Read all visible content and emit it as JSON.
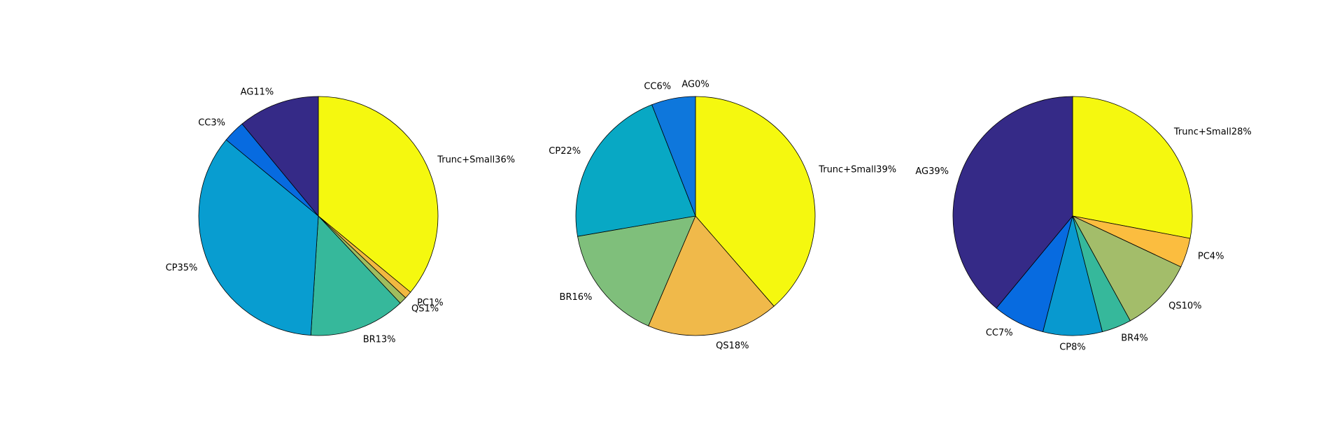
{
  "chart_data": [
    {
      "type": "pie",
      "slices": [
        {
          "name": "Trunc+Small",
          "label": "Trunc+Small36%",
          "value": 36,
          "color": "#f5f80f"
        },
        {
          "name": "PC",
          "label": "PC1%",
          "value": 1,
          "color": "#f2b840"
        },
        {
          "name": "QS",
          "label": "QS1%",
          "value": 1,
          "color": "#9fbd5e"
        },
        {
          "name": "BR",
          "label": "BR13%",
          "value": 13,
          "color": "#36b89b"
        },
        {
          "name": "CP",
          "label": "CP35%",
          "value": 35,
          "color": "#089dd0"
        },
        {
          "name": "CC",
          "label": "CC3%",
          "value": 3,
          "color": "#076be0"
        },
        {
          "name": "AG",
          "label": "AG11%",
          "value": 11,
          "color": "#352a87"
        }
      ]
    },
    {
      "type": "pie",
      "slices": [
        {
          "name": "Trunc+Small",
          "label": "Trunc+Small39%",
          "value": 39,
          "color": "#f5f80f"
        },
        {
          "name": "QS",
          "label": "QS18%",
          "value": 18,
          "color": "#f0b94a"
        },
        {
          "name": "BR",
          "label": "BR16%",
          "value": 16,
          "color": "#7fbf7b"
        },
        {
          "name": "CP",
          "label": "CP22%",
          "value": 22,
          "color": "#08a8c4"
        },
        {
          "name": "CC",
          "label": "CC6%",
          "value": 6,
          "color": "#0e77dc"
        },
        {
          "name": "AG",
          "label": "AG0%",
          "value": 0,
          "color": "#352a87"
        }
      ]
    },
    {
      "type": "pie",
      "slices": [
        {
          "name": "Trunc+Small",
          "label": "Trunc+Small28%",
          "value": 28,
          "color": "#f5f80f"
        },
        {
          "name": "PC",
          "label": "PC4%",
          "value": 4,
          "color": "#fbbd3f"
        },
        {
          "name": "QS",
          "label": "QS10%",
          "value": 10,
          "color": "#a3bd6a"
        },
        {
          "name": "BR",
          "label": "BR4%",
          "value": 4,
          "color": "#36b89b"
        },
        {
          "name": "CP",
          "label": "CP8%",
          "value": 8,
          "color": "#0899cf"
        },
        {
          "name": "CC",
          "label": "CC7%",
          "value": 7,
          "color": "#076be0"
        },
        {
          "name": "AG",
          "label": "AG39%",
          "value": 39,
          "color": "#352a87"
        }
      ]
    }
  ]
}
